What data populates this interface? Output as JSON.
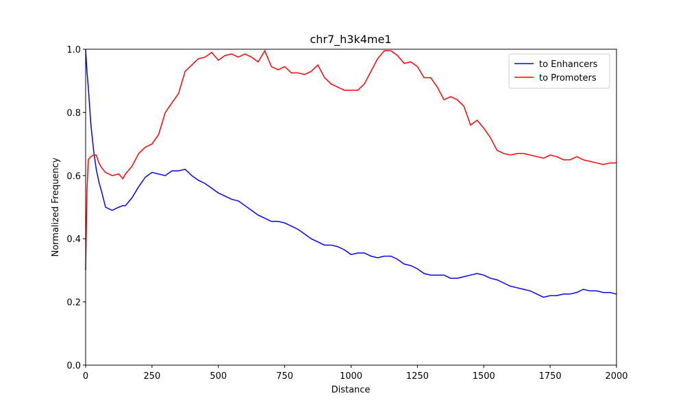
{
  "chart_data": {
    "type": "line",
    "title": "chr7_h3k4me1",
    "xlabel": "Distance",
    "ylabel": "Normalized Frequency",
    "x": [
      0,
      5,
      10,
      20,
      30,
      40,
      50,
      60,
      75,
      100,
      125,
      140,
      150,
      175,
      200,
      225,
      250,
      275,
      300,
      325,
      350,
      375,
      400,
      425,
      450,
      475,
      500,
      525,
      550,
      575,
      600,
      625,
      650,
      675,
      700,
      725,
      750,
      775,
      800,
      825,
      850,
      875,
      900,
      925,
      950,
      975,
      1000,
      1025,
      1050,
      1075,
      1100,
      1125,
      1150,
      1175,
      1200,
      1225,
      1250,
      1275,
      1300,
      1325,
      1350,
      1375,
      1400,
      1425,
      1450,
      1475,
      1500,
      1525,
      1550,
      1575,
      1600,
      1625,
      1650,
      1675,
      1700,
      1725,
      1750,
      1775,
      1800,
      1825,
      1850,
      1875,
      1900,
      1925,
      1950,
      1975,
      2000
    ],
    "series": [
      {
        "name": "to Enhancers",
        "color": "#0000ff",
        "values": [
          1.0,
          0.93,
          0.88,
          0.76,
          0.68,
          0.62,
          0.58,
          0.55,
          0.5,
          0.49,
          0.5,
          0.505,
          0.505,
          0.53,
          0.565,
          0.595,
          0.61,
          0.605,
          0.6,
          0.615,
          0.615,
          0.62,
          0.6,
          0.585,
          0.575,
          0.56,
          0.545,
          0.535,
          0.525,
          0.52,
          0.505,
          0.49,
          0.475,
          0.465,
          0.455,
          0.455,
          0.45,
          0.44,
          0.43,
          0.415,
          0.4,
          0.39,
          0.38,
          0.38,
          0.375,
          0.365,
          0.35,
          0.355,
          0.355,
          0.345,
          0.34,
          0.345,
          0.345,
          0.335,
          0.32,
          0.315,
          0.305,
          0.29,
          0.285,
          0.285,
          0.285,
          0.275,
          0.275,
          0.28,
          0.285,
          0.29,
          0.285,
          0.275,
          0.27,
          0.26,
          0.25,
          0.245,
          0.24,
          0.235,
          0.225,
          0.215,
          0.22,
          0.22,
          0.225,
          0.225,
          0.23,
          0.24,
          0.235,
          0.235,
          0.23,
          0.23,
          0.225
        ]
      },
      {
        "name": "to Promoters",
        "color": "#ff0000",
        "values": [
          0.3,
          0.55,
          0.65,
          0.66,
          0.665,
          0.665,
          0.64,
          0.625,
          0.61,
          0.6,
          0.605,
          0.59,
          0.605,
          0.63,
          0.67,
          0.69,
          0.7,
          0.73,
          0.8,
          0.83,
          0.86,
          0.93,
          0.95,
          0.97,
          0.975,
          0.99,
          0.965,
          0.98,
          0.985,
          0.975,
          0.985,
          0.975,
          0.96,
          0.995,
          0.945,
          0.935,
          0.945,
          0.925,
          0.925,
          0.92,
          0.93,
          0.95,
          0.91,
          0.89,
          0.88,
          0.87,
          0.87,
          0.87,
          0.89,
          0.93,
          0.97,
          0.995,
          0.995,
          0.98,
          0.955,
          0.96,
          0.945,
          0.91,
          0.91,
          0.88,
          0.84,
          0.85,
          0.84,
          0.82,
          0.76,
          0.775,
          0.75,
          0.72,
          0.68,
          0.67,
          0.665,
          0.67,
          0.67,
          0.665,
          0.66,
          0.655,
          0.665,
          0.66,
          0.65,
          0.65,
          0.66,
          0.65,
          0.645,
          0.64,
          0.635,
          0.64,
          0.64
        ]
      }
    ],
    "xlim": [
      0,
      2000
    ],
    "xticks": [
      0,
      250,
      500,
      750,
      1000,
      1250,
      1500,
      1750,
      2000
    ],
    "ylim": [
      0,
      1
    ],
    "yticks": [
      {
        "value": 0,
        "label": "0.0"
      },
      0.2,
      0.4,
      0.6,
      0.8,
      {
        "value": 1,
        "label": "1.0"
      }
    ],
    "grid": false,
    "legend": "upper right"
  }
}
